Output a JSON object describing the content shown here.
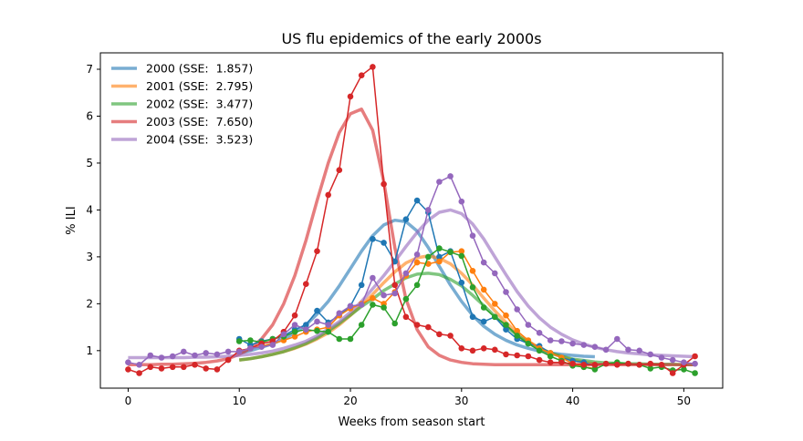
{
  "chart_data": {
    "type": "line",
    "title": "US flu epidemics of the early 2000s",
    "xlabel": "Weeks from season start",
    "ylabel": "% ILI",
    "xlim": [
      -2.5,
      53.5
    ],
    "ylim": [
      0.2,
      7.35
    ],
    "xticks": [
      0,
      10,
      20,
      30,
      40,
      50
    ],
    "yticks": [
      1,
      2,
      3,
      4,
      5,
      6,
      7
    ],
    "grid": false,
    "legend_position": "top-left",
    "series": [
      {
        "name": "2000 (SSE:  1.857)",
        "color": "#1f77b4",
        "observed": {
          "x": [
            10,
            11,
            12,
            13,
            14,
            15,
            16,
            17,
            18,
            19,
            20,
            21,
            22,
            23,
            24,
            25,
            26,
            27,
            28,
            29,
            30,
            31,
            32,
            33,
            34,
            35,
            36,
            37,
            38,
            39,
            40,
            41,
            42
          ],
          "y": [
            1.25,
            1.12,
            1.2,
            1.25,
            1.32,
            1.45,
            1.55,
            1.85,
            1.6,
            1.75,
            1.95,
            2.4,
            3.38,
            3.3,
            2.9,
            3.8,
            4.2,
            3.95,
            3.0,
            3.12,
            2.45,
            1.72,
            1.62,
            1.72,
            1.45,
            1.25,
            1.15,
            1.1,
            0.95,
            0.85,
            0.78,
            0.75,
            0.68
          ]
        },
        "model": {
          "x": [
            10,
            11,
            12,
            13,
            14,
            15,
            16,
            17,
            18,
            19,
            20,
            21,
            22,
            23,
            24,
            25,
            26,
            27,
            28,
            29,
            30,
            31,
            32,
            33,
            34,
            35,
            36,
            37,
            38,
            39,
            40,
            41,
            42
          ],
          "y": [
            0.95,
            1.0,
            1.07,
            1.15,
            1.25,
            1.38,
            1.55,
            1.78,
            2.05,
            2.38,
            2.75,
            3.12,
            3.45,
            3.68,
            3.78,
            3.75,
            3.55,
            3.2,
            2.8,
            2.4,
            2.05,
            1.75,
            1.52,
            1.35,
            1.22,
            1.12,
            1.05,
            0.99,
            0.95,
            0.92,
            0.9,
            0.88,
            0.87
          ]
        }
      },
      {
        "name": "2001 (SSE:  2.795)",
        "color": "#ff7f0e",
        "observed": {
          "x": [
            10,
            11,
            12,
            13,
            14,
            15,
            16,
            17,
            18,
            19,
            20,
            21,
            22,
            23,
            24,
            25,
            26,
            27,
            28,
            29,
            30,
            31,
            32,
            33,
            34,
            35,
            36,
            37,
            38,
            39,
            40,
            41,
            42
          ],
          "y": [
            0.98,
            1.05,
            1.1,
            1.15,
            1.22,
            1.3,
            1.4,
            1.45,
            1.5,
            1.75,
            1.9,
            2.0,
            2.12,
            2.0,
            2.25,
            2.6,
            2.88,
            2.85,
            2.9,
            3.1,
            3.12,
            2.7,
            2.3,
            2.0,
            1.75,
            1.42,
            1.22,
            1.05,
            0.95,
            0.85,
            0.72,
            0.65,
            0.62
          ]
        },
        "model": {
          "x": [
            10,
            11,
            12,
            13,
            14,
            15,
            16,
            17,
            18,
            19,
            20,
            21,
            22,
            23,
            24,
            25,
            26,
            27,
            28,
            29,
            30,
            31,
            32,
            33,
            34,
            35,
            36,
            37,
            38,
            39,
            40,
            41,
            42
          ],
          "y": [
            0.8,
            0.83,
            0.87,
            0.92,
            0.98,
            1.05,
            1.14,
            1.25,
            1.38,
            1.55,
            1.75,
            1.97,
            2.2,
            2.45,
            2.68,
            2.87,
            2.98,
            3.02,
            2.97,
            2.85,
            2.65,
            2.4,
            2.12,
            1.85,
            1.6,
            1.38,
            1.2,
            1.06,
            0.95,
            0.87,
            0.8,
            0.75,
            0.72
          ]
        }
      },
      {
        "name": "2002 (SSE:  3.477)",
        "color": "#2ca02c",
        "observed": {
          "x": [
            10,
            11,
            12,
            13,
            14,
            15,
            16,
            17,
            18,
            19,
            20,
            21,
            22,
            23,
            24,
            25,
            26,
            27,
            28,
            29,
            30,
            31,
            32,
            33,
            34,
            35,
            36,
            37,
            38,
            39,
            40,
            41,
            42,
            43,
            44,
            45,
            46,
            47,
            48,
            49,
            50,
            51
          ],
          "y": [
            1.2,
            1.22,
            1.18,
            1.25,
            1.3,
            1.4,
            1.45,
            1.42,
            1.4,
            1.25,
            1.25,
            1.55,
            1.98,
            1.92,
            1.58,
            2.1,
            2.4,
            3.0,
            3.18,
            3.1,
            3.02,
            2.35,
            1.92,
            1.72,
            1.55,
            1.32,
            1.15,
            1.0,
            0.88,
            0.78,
            0.68,
            0.65,
            0.6,
            0.72,
            0.75,
            0.72,
            0.7,
            0.62,
            0.65,
            0.58,
            0.6,
            0.52
          ]
        },
        "model": {
          "x": [
            10,
            11,
            12,
            13,
            14,
            15,
            16,
            17,
            18,
            19,
            20,
            21,
            22,
            23,
            24,
            25,
            26,
            27,
            28,
            29,
            30,
            31,
            32,
            33,
            34,
            35,
            36,
            37,
            38,
            39,
            40,
            41,
            42,
            43,
            44,
            45,
            46,
            47,
            48,
            49,
            50,
            51
          ],
          "y": [
            0.8,
            0.83,
            0.87,
            0.92,
            0.98,
            1.06,
            1.15,
            1.27,
            1.42,
            1.58,
            1.76,
            1.94,
            2.1,
            2.28,
            2.42,
            2.55,
            2.63,
            2.65,
            2.62,
            2.52,
            2.38,
            2.18,
            1.96,
            1.73,
            1.52,
            1.33,
            1.17,
            1.05,
            0.95,
            0.88,
            0.82,
            0.79,
            0.76,
            0.74,
            0.73,
            0.72,
            0.72,
            0.71,
            0.71,
            0.71,
            0.7,
            0.7
          ]
        }
      },
      {
        "name": "2003 (SSE:  7.650)",
        "color": "#d62728",
        "observed": {
          "x": [
            0,
            1,
            2,
            3,
            4,
            5,
            6,
            7,
            8,
            9,
            10,
            11,
            12,
            13,
            14,
            15,
            16,
            17,
            18,
            19,
            20,
            21,
            22,
            23,
            24,
            25,
            26,
            27,
            28,
            29,
            30,
            31,
            32,
            33,
            34,
            35,
            36,
            37,
            38,
            39,
            40,
            41,
            42,
            43,
            44,
            45,
            46,
            47,
            48,
            49,
            50,
            51
          ],
          "y": [
            0.6,
            0.52,
            0.65,
            0.62,
            0.65,
            0.65,
            0.7,
            0.62,
            0.6,
            0.8,
            1.0,
            1.05,
            1.15,
            1.2,
            1.4,
            1.75,
            2.42,
            3.12,
            4.32,
            4.85,
            6.42,
            6.87,
            7.05,
            4.55,
            2.4,
            1.72,
            1.55,
            1.5,
            1.35,
            1.32,
            1.05,
            1.0,
            1.05,
            1.02,
            0.92,
            0.9,
            0.88,
            0.8,
            0.75,
            0.75,
            0.72,
            0.7,
            0.7,
            0.72,
            0.7,
            0.72,
            0.7,
            0.72,
            0.7,
            0.52,
            0.7,
            0.88
          ]
        },
        "model": {
          "x": [
            0,
            1,
            2,
            3,
            4,
            5,
            6,
            7,
            8,
            9,
            10,
            11,
            12,
            13,
            14,
            15,
            16,
            17,
            18,
            19,
            20,
            21,
            22,
            23,
            24,
            25,
            26,
            27,
            28,
            29,
            30,
            31,
            32,
            33,
            34,
            35,
            36,
            37,
            38,
            39,
            40,
            41,
            42,
            43,
            44,
            45,
            46,
            47,
            48,
            49,
            50,
            51
          ],
          "y": [
            0.7,
            0.7,
            0.7,
            0.71,
            0.71,
            0.72,
            0.73,
            0.75,
            0.78,
            0.83,
            0.92,
            1.05,
            1.25,
            1.55,
            2.0,
            2.6,
            3.35,
            4.2,
            5.0,
            5.65,
            6.05,
            6.15,
            5.7,
            4.6,
            3.2,
            2.1,
            1.45,
            1.08,
            0.9,
            0.8,
            0.75,
            0.72,
            0.71,
            0.7,
            0.7,
            0.7,
            0.7,
            0.7,
            0.7,
            0.7,
            0.7,
            0.7,
            0.7,
            0.7,
            0.7,
            0.7,
            0.7,
            0.7,
            0.7,
            0.7,
            0.7,
            0.7
          ]
        }
      },
      {
        "name": "2004 (SSE:  3.523)",
        "color": "#9467bd",
        "observed": {
          "x": [
            0,
            1,
            2,
            3,
            4,
            5,
            6,
            7,
            8,
            9,
            10,
            11,
            12,
            13,
            14,
            15,
            16,
            17,
            18,
            19,
            20,
            21,
            22,
            23,
            24,
            25,
            26,
            27,
            28,
            29,
            30,
            31,
            32,
            33,
            34,
            35,
            36,
            37,
            38,
            39,
            40,
            41,
            42,
            43,
            44,
            45,
            46,
            47,
            48,
            49,
            50,
            51
          ],
          "y": [
            0.75,
            0.7,
            0.9,
            0.85,
            0.88,
            0.98,
            0.9,
            0.95,
            0.92,
            0.98,
            0.98,
            1.05,
            1.08,
            1.12,
            1.35,
            1.55,
            1.45,
            1.62,
            1.55,
            1.8,
            1.95,
            1.98,
            2.55,
            2.18,
            2.22,
            2.65,
            3.05,
            4.0,
            4.6,
            4.72,
            4.18,
            3.45,
            2.88,
            2.65,
            2.25,
            1.88,
            1.55,
            1.38,
            1.22,
            1.2,
            1.15,
            1.12,
            1.08,
            1.02,
            1.25,
            1.02,
            1.0,
            0.92,
            0.85,
            0.8,
            0.75,
            0.72
          ]
        },
        "model": {
          "x": [
            0,
            1,
            2,
            3,
            4,
            5,
            6,
            7,
            8,
            9,
            10,
            11,
            12,
            13,
            14,
            15,
            16,
            17,
            18,
            19,
            20,
            21,
            22,
            23,
            24,
            25,
            26,
            27,
            28,
            29,
            30,
            31,
            32,
            33,
            34,
            35,
            36,
            37,
            38,
            39,
            40,
            41,
            42,
            43,
            44,
            45,
            46,
            47,
            48,
            49,
            50,
            51
          ],
          "y": [
            0.85,
            0.85,
            0.85,
            0.85,
            0.85,
            0.85,
            0.86,
            0.86,
            0.87,
            0.88,
            0.9,
            0.92,
            0.95,
            0.99,
            1.05,
            1.12,
            1.2,
            1.32,
            1.46,
            1.62,
            1.82,
            2.05,
            2.32,
            2.6,
            2.9,
            3.22,
            3.52,
            3.78,
            3.95,
            4.0,
            3.92,
            3.7,
            3.38,
            3.0,
            2.62,
            2.26,
            1.95,
            1.7,
            1.5,
            1.35,
            1.23,
            1.14,
            1.07,
            1.02,
            0.98,
            0.95,
            0.93,
            0.91,
            0.9,
            0.89,
            0.88,
            0.87
          ]
        }
      }
    ]
  }
}
